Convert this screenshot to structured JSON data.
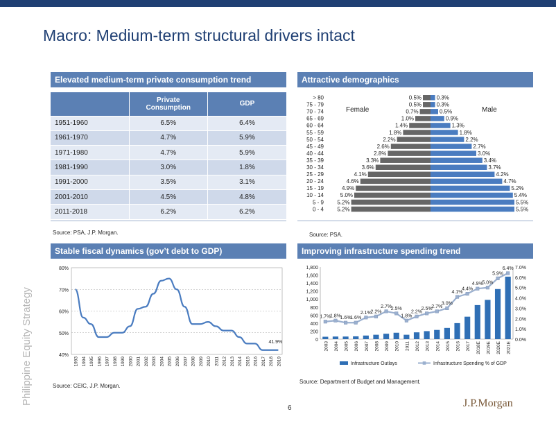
{
  "page": {
    "title": "Macro: Medium-term structural drivers intact",
    "side_label": "Philippine Equity Strategy",
    "page_number": "6",
    "brand": "J.P.Morgan"
  },
  "colors": {
    "header": "#5b80b4",
    "navy": "#1f3f73",
    "male": "#4a7cc0",
    "female": "#666666",
    "bars": "#2f6fb5",
    "spend_line": "#9bb0cf"
  },
  "panels": {
    "consumption": {
      "title": "Elevated medium-term private consumption trend",
      "source": "Source:  PSA, J.P. Morgan.",
      "columns": [
        "",
        "Private Consumption",
        "GDP"
      ],
      "rows": [
        {
          "period": "1951-1960",
          "private": "6.5%",
          "gdp": "6.4%"
        },
        {
          "period": "1961-1970",
          "private": "4.7%",
          "gdp": "5.9%"
        },
        {
          "period": "1971-1980",
          "private": "4.7%",
          "gdp": "5.9%"
        },
        {
          "period": "1981-1990",
          "private": "3.0%",
          "gdp": "1.8%"
        },
        {
          "period": "1991-2000",
          "private": "3.5%",
          "gdp": "3.1%"
        },
        {
          "period": "2001-2010",
          "private": "4.5%",
          "gdp": "4.8%"
        },
        {
          "period": "2011-2018",
          "private": "6.2%",
          "gdp": "6.2%"
        }
      ]
    },
    "demographics": {
      "title": "Attractive demographics",
      "source": "Source:  PSA."
    },
    "fiscal": {
      "title": "Stable fiscal dynamics (gov’t debt to GDP)",
      "source": "Source:  CEIC, J.P. Morgan."
    },
    "infrastructure": {
      "title": "Improving infrastructure spending trend",
      "source": "Source:  Department of Budget and Management."
    }
  },
  "chart_data": [
    {
      "type": "bar",
      "id": "population-pyramid",
      "categories": [
        "> 80",
        "75 - 79",
        "70 - 74",
        "65 - 69",
        "60 - 64",
        "55 - 59",
        "50 - 54",
        "45 - 49",
        "40 - 44",
        "35 - 39",
        "30 - 34",
        "25 - 29",
        "20 - 24",
        "15 - 19",
        "10 - 14",
        "5 - 9",
        "0 - 4"
      ],
      "series": [
        {
          "name": "Female",
          "values": [
            0.5,
            0.5,
            0.7,
            1.0,
            1.4,
            1.8,
            2.2,
            2.6,
            2.8,
            3.3,
            3.6,
            4.1,
            4.6,
            4.9,
            5.0,
            5.2,
            5.2
          ],
          "labels": [
            "0.5%",
            "0.5%",
            "0.7%",
            "1.0%",
            "1.4%",
            "1.8%",
            "2.2%",
            "2.6%",
            "2.8%",
            "3.3%",
            "3.6%",
            "4.1%",
            "4.6%",
            "4.9%",
            "5.0%",
            "5.2%",
            "5.2%"
          ]
        },
        {
          "name": "Male",
          "values": [
            0.3,
            0.3,
            0.5,
            0.9,
            1.3,
            1.8,
            2.2,
            2.7,
            3.0,
            3.4,
            3.7,
            4.2,
            4.7,
            5.2,
            5.4,
            5.5,
            5.5
          ],
          "labels": [
            "0.3%",
            "0.3%",
            "0.5%",
            "0.9%",
            "1.3%",
            "1.8%",
            "2.2%",
            "2.7%",
            "3.0%",
            "3.4%",
            "3.7%",
            "4.2%",
            "4.7%",
            "5.2%",
            "5.4%",
            "5.5%",
            "5.5%"
          ]
        }
      ]
    },
    {
      "type": "line",
      "id": "debt-to-gdp",
      "x": [
        "1993",
        "1994",
        "1995",
        "1996",
        "1997",
        "1998",
        "1999",
        "2000",
        "2001",
        "2002",
        "2003",
        "2004",
        "2005",
        "2006",
        "2007",
        "2008",
        "2009",
        "2010",
        "2011",
        "2012",
        "2013",
        "2014",
        "2015",
        "2016",
        "2017",
        "2018",
        "2019"
      ],
      "series": [
        {
          "values": [
            70,
            57,
            54,
            48,
            48,
            50,
            50,
            53,
            61,
            62,
            68,
            74,
            75,
            70,
            62,
            54,
            54,
            55,
            53,
            51,
            51,
            48,
            45,
            45,
            42,
            42,
            42
          ]
        }
      ],
      "yticks": [
        "40%",
        "50%",
        "60%",
        "70%",
        "80%"
      ],
      "ylim": [
        40,
        80
      ],
      "annotation": "41.9%"
    },
    {
      "type": "bar",
      "id": "infrastructure-spending",
      "x": [
        "2003",
        "2004",
        "2005",
        "2006",
        "2007",
        "2008",
        "2009",
        "2010",
        "2011",
        "2012",
        "2013",
        "2014",
        "2015",
        "2016",
        "2017",
        "2018E",
        "2019E",
        "2020E",
        "2021E"
      ],
      "series": [
        {
          "name": "Infrastructure Outlays",
          "values": [
            60,
            65,
            65,
            70,
            90,
            110,
            135,
            160,
            110,
            170,
            200,
            230,
            280,
            400,
            560,
            850,
            980,
            1250,
            1560
          ]
        },
        {
          "name": "Infrastructure Spending % of GDP",
          "values": [
            1.7,
            1.8,
            1.6,
            1.6,
            2.1,
            2.2,
            2.7,
            2.5,
            1.8,
            2.2,
            2.5,
            2.7,
            3.0,
            4.1,
            4.4,
            4.9,
            5.0,
            5.9,
            6.4
          ],
          "labels": [
            "1.7%",
            "1.8%",
            "1.6%",
            "1.6%",
            "2.1%",
            "2.2%",
            "2.7%",
            "2.5%",
            "1.8%",
            "2.2%",
            "2.5%",
            "2.7%",
            "3.0%",
            "4.1%",
            "4.4%",
            "4.9%",
            "5.0%",
            "5.9%",
            "6.4%"
          ]
        }
      ],
      "y1ticks": [
        "0",
        "200",
        "400",
        "600",
        "800",
        "1,000",
        "1,200",
        "1,400",
        "1,600",
        "1,800"
      ],
      "y1lim": [
        0,
        1800
      ],
      "y2ticks": [
        "0.0%",
        "1.0%",
        "2.0%",
        "3.0%",
        "4.0%",
        "5.0%",
        "6.0%",
        "7.0%"
      ],
      "y2lim": [
        0,
        7
      ]
    }
  ]
}
